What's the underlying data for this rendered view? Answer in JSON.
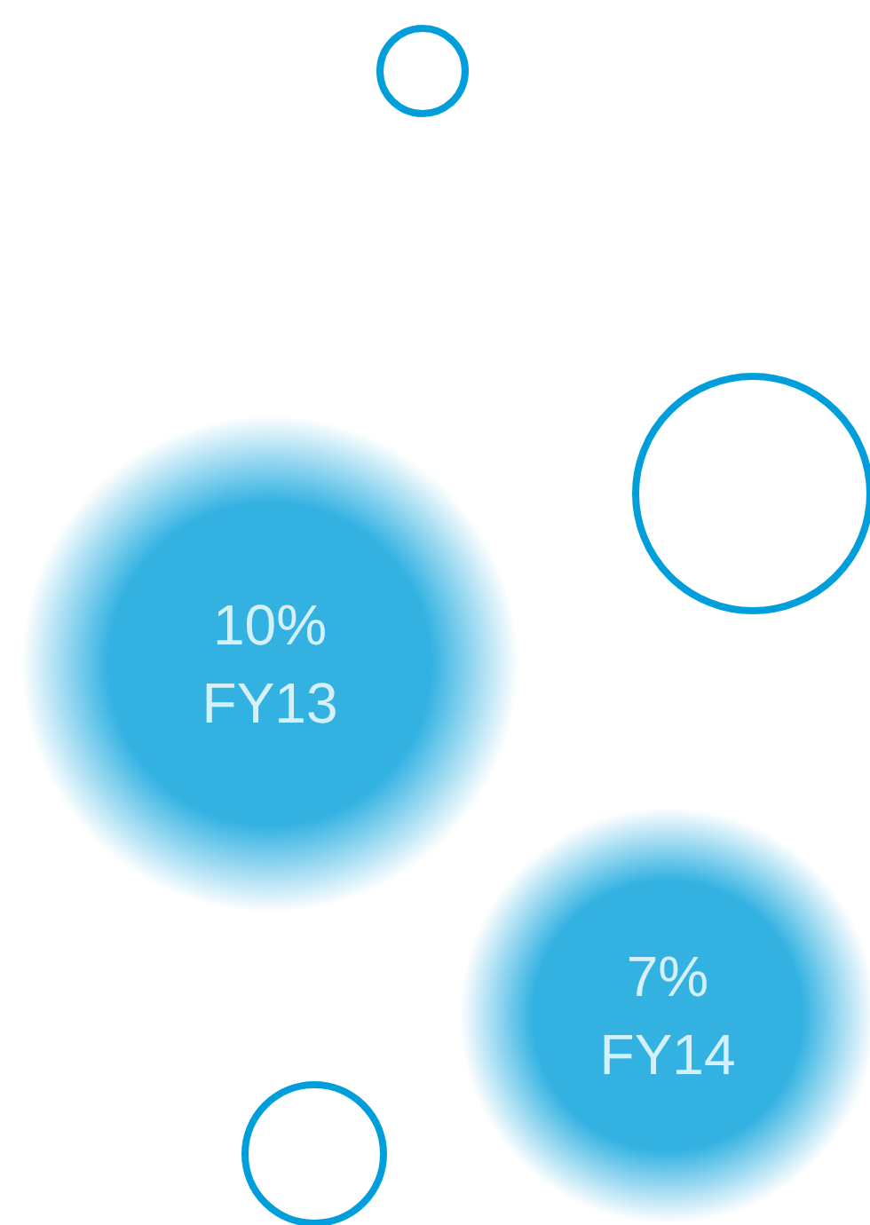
{
  "chart_data": {
    "type": "other",
    "categories": [
      "FY13",
      "FY14"
    ],
    "values": [
      10,
      7
    ],
    "value_labels": [
      "10%",
      "7%"
    ],
    "color": "#009fdb"
  }
}
